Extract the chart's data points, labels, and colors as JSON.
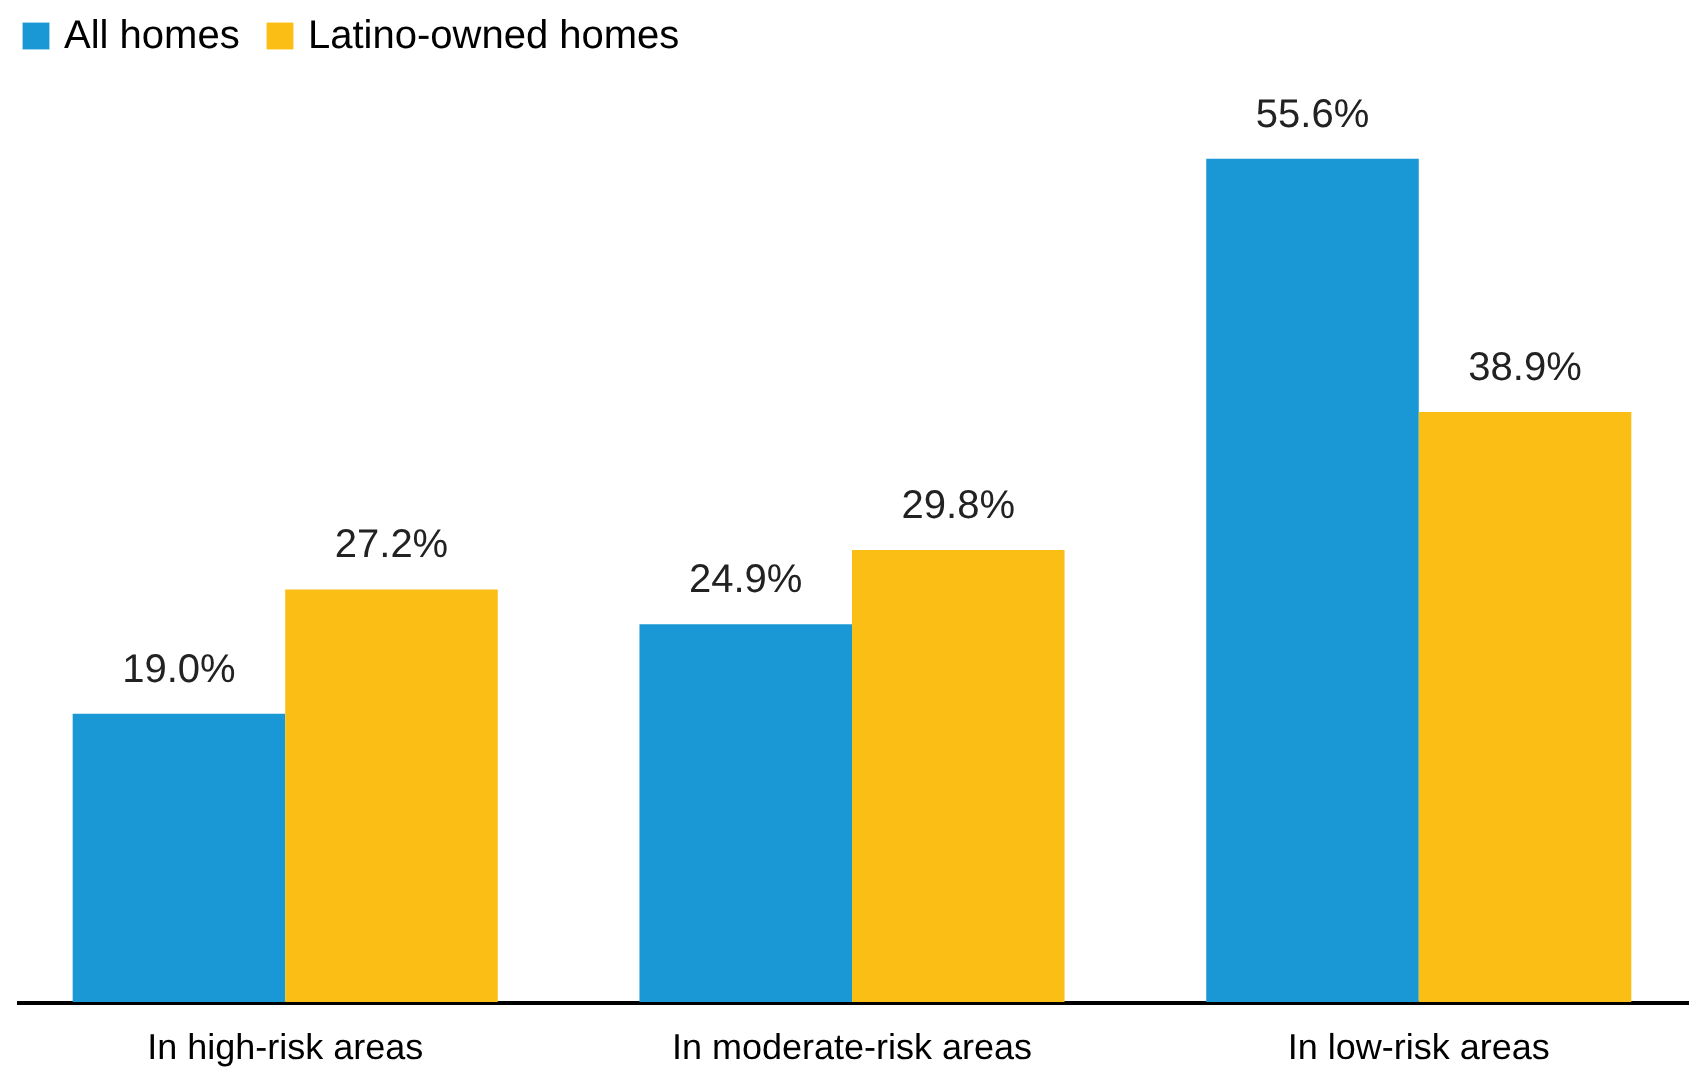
{
  "chart_data": {
    "type": "bar",
    "categories": [
      "In high-risk areas",
      "In moderate-risk areas",
      "In low-risk areas"
    ],
    "series": [
      {
        "name": "All homes",
        "color": "#1a98d5",
        "values": [
          19.0,
          24.9,
          55.6
        ],
        "value_labels": [
          "19.0%",
          "24.9%",
          "55.6%"
        ]
      },
      {
        "name": "Latino-owned homes",
        "color": "#fbbe15",
        "values": [
          27.2,
          29.8,
          38.9
        ],
        "value_labels": [
          "27.2%",
          "29.8%",
          "38.9%"
        ]
      }
    ],
    "legend": "top left",
    "grid": false
  }
}
